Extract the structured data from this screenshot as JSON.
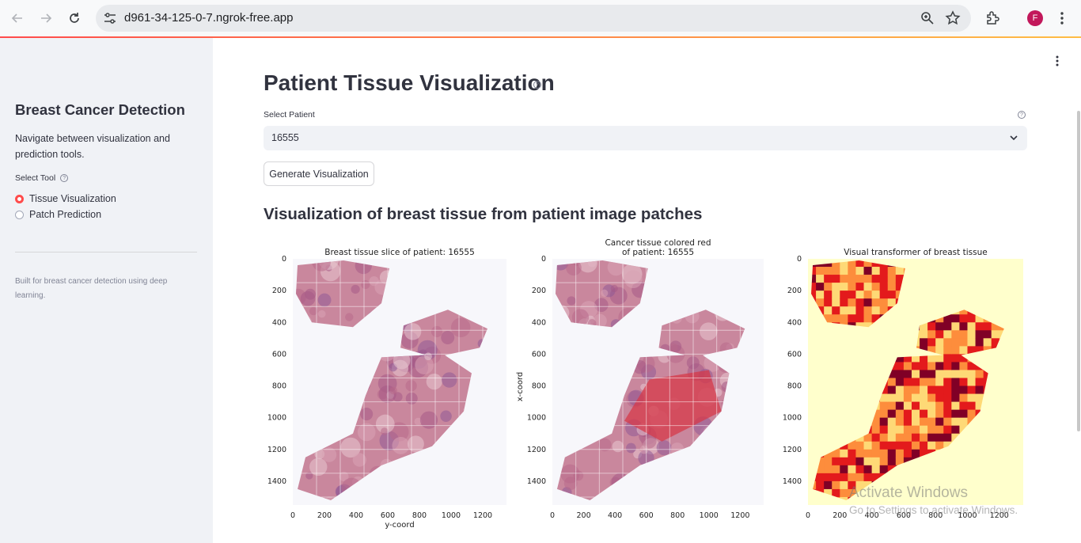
{
  "browser": {
    "url": "d961-34-125-0-7.ngrok-free.app",
    "profile_initial": "F",
    "icons": [
      "back-icon",
      "forward-icon",
      "reload-icon",
      "site-info-icon",
      "zoom-icon",
      "bookmark-star-icon",
      "extensions-icon",
      "chrome-menu-icon"
    ]
  },
  "sidebar": {
    "title": "Breast Cancer Detection",
    "description": "Navigate between visualization and prediction tools.",
    "tool_label": "Select Tool",
    "options": [
      {
        "label": "Tissue Visualization",
        "selected": true
      },
      {
        "label": "Patch Prediction",
        "selected": false
      }
    ],
    "footer": "Built for breast cancer detection using deep learning."
  },
  "main": {
    "title": "Patient Tissue Visualization",
    "select_label": "Select Patient",
    "selected_patient": "16555",
    "button_label": "Generate Visualization",
    "subheading": "Visualization of breast tissue from patient image patches"
  },
  "chart_data": [
    {
      "type": "heatmap",
      "title": "Breast tissue slice of patient: 16555",
      "xlabel": "y-coord",
      "ylabel": "",
      "xlim": [
        0,
        1350
      ],
      "ylim": [
        1550,
        0
      ],
      "x_ticks": [
        "0",
        "200",
        "400",
        "600",
        "800",
        "1000",
        "1200"
      ],
      "y_ticks": [
        "0",
        "200",
        "400",
        "600",
        "800",
        "1000",
        "1200",
        "1400"
      ]
    },
    {
      "type": "heatmap",
      "title": "Cancer tissue colored red\nof patient: 16555",
      "xlabel": "",
      "ylabel": "x-coord",
      "xlim": [
        0,
        1350
      ],
      "ylim": [
        1550,
        0
      ],
      "x_ticks": [
        "0",
        "200",
        "400",
        "600",
        "800",
        "1000",
        "1200"
      ],
      "y_ticks": [
        "0",
        "200",
        "400",
        "600",
        "800",
        "1000",
        "1200",
        "1400"
      ]
    },
    {
      "type": "heatmap",
      "title": "Visual transformer of breast tissue",
      "xlabel": "",
      "ylabel": "",
      "xlim": [
        0,
        1350
      ],
      "ylim": [
        1550,
        0
      ],
      "x_ticks": [
        "0",
        "200",
        "400",
        "600",
        "800",
        "1000",
        "1200"
      ],
      "y_ticks": [
        "0",
        "200",
        "400",
        "600",
        "800",
        "1000",
        "1200",
        "1400"
      ],
      "colormap": [
        "#ffffcc",
        "#fed976",
        "#fd8d3c",
        "#e31a1c",
        "#800026"
      ]
    }
  ],
  "watermark": {
    "line1": "Activate Windows",
    "line2": "Go to Settings to activate Windows."
  }
}
